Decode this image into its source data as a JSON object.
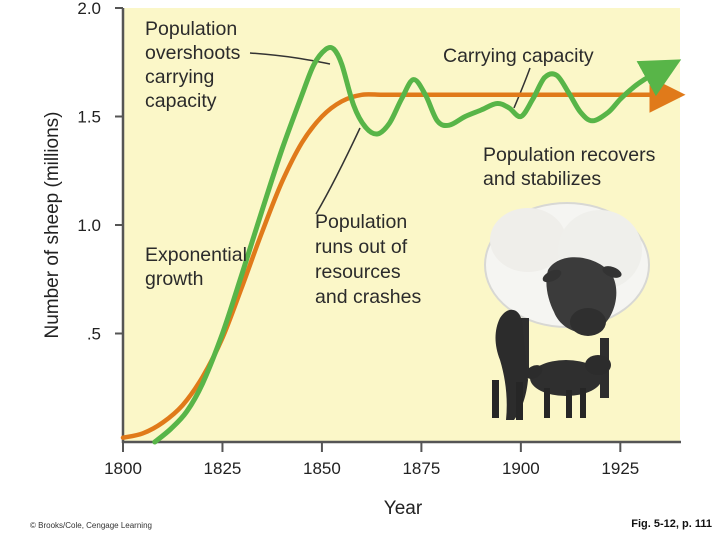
{
  "chart_data": {
    "type": "line",
    "ylabel": "Number of sheep (millions)",
    "xlabel": "Year",
    "xlim": [
      1800,
      1940
    ],
    "ylim": [
      0,
      2.0
    ],
    "x_ticks": [
      1800,
      1825,
      1850,
      1875,
      1900,
      1925
    ],
    "x_tick_labels": [
      "1800",
      "1825",
      "1850",
      "1875",
      "1900",
      "1925"
    ],
    "y_ticks": [
      0.5,
      1.0,
      1.5,
      2.0
    ],
    "y_tick_labels": [
      ".5",
      "1.0",
      "1.5",
      "2.0"
    ],
    "grid": false,
    "series": [
      {
        "key": "carrying",
        "color": "#e07a1a",
        "x": [
          1800,
          1805,
          1810,
          1815,
          1820,
          1825,
          1830,
          1835,
          1840,
          1845,
          1850,
          1855,
          1860,
          1865,
          1870,
          1880,
          1890,
          1900,
          1910,
          1920,
          1930,
          1938
        ],
        "y": [
          0.02,
          0.04,
          0.09,
          0.17,
          0.3,
          0.48,
          0.72,
          0.97,
          1.2,
          1.38,
          1.5,
          1.57,
          1.6,
          1.6,
          1.6,
          1.6,
          1.6,
          1.6,
          1.6,
          1.6,
          1.6,
          1.6
        ]
      },
      {
        "key": "population",
        "color": "#58b548",
        "x": [
          1808,
          1812,
          1816,
          1820,
          1825,
          1830,
          1835,
          1840,
          1845,
          1848,
          1851,
          1853,
          1855,
          1858,
          1861,
          1864,
          1867,
          1870,
          1873,
          1876,
          1879,
          1882,
          1886,
          1890,
          1894,
          1897,
          1900,
          1903,
          1906,
          1909,
          1912,
          1915,
          1918,
          1922,
          1925,
          1928,
          1931,
          1934,
          1937
        ],
        "y": [
          0.0,
          0.06,
          0.14,
          0.27,
          0.5,
          0.78,
          1.07,
          1.35,
          1.6,
          1.74,
          1.81,
          1.81,
          1.74,
          1.55,
          1.45,
          1.42,
          1.47,
          1.58,
          1.67,
          1.6,
          1.48,
          1.46,
          1.5,
          1.53,
          1.56,
          1.54,
          1.5,
          1.58,
          1.68,
          1.69,
          1.61,
          1.52,
          1.48,
          1.52,
          1.58,
          1.63,
          1.67,
          1.7,
          1.73
        ]
      }
    ],
    "annotations": [
      {
        "lines": [
          "Population",
          "overshoots",
          "carrying",
          "capacity"
        ]
      },
      {
        "lines": [
          "Carrying capacity"
        ]
      },
      {
        "lines": [
          "Population recovers",
          "and stabilizes"
        ]
      },
      {
        "lines": [
          "Exponential",
          "growth"
        ]
      },
      {
        "lines": [
          "Population",
          "runs out of",
          "resources",
          "and crashes"
        ]
      }
    ],
    "background_color": "#fbf7c8",
    "axis_color": "#555555"
  },
  "illustration": {
    "icon": "sheep-with-lambs"
  },
  "footer": {
    "credit": "© Brooks/Cole, Cengage Learning",
    "figure_ref": "Fig. 5-12, p. 111"
  }
}
